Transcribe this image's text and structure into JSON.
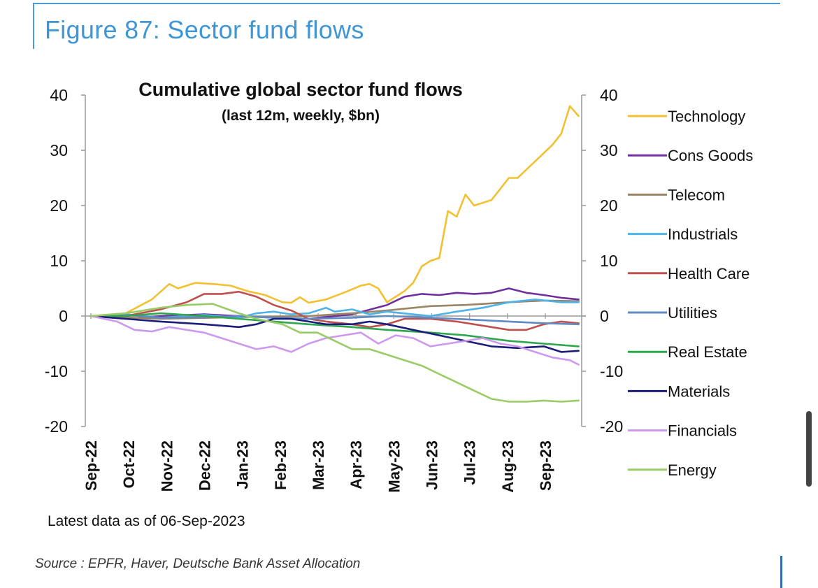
{
  "figure_title": "Figure 87: Sector fund flows",
  "footnote": "Latest data as of 06-Sep-2023",
  "source": "Source : EPFR, Haver, Deutsche Bank Asset Allocation",
  "chart_data": {
    "type": "line",
    "title": "Cumulative global sector fund flows",
    "subtitle": "(last 12m, weekly, $bn)",
    "xlabel": "",
    "ylabel": "",
    "ylim": [
      -20,
      40
    ],
    "yticks": [
      40,
      30,
      20,
      10,
      0,
      -10,
      -20
    ],
    "x_tick_labels": [
      "Sep-22",
      "Oct-22",
      "Nov-22",
      "Dec-22",
      "Jan-23",
      "Feb-23",
      "Mar-23",
      "Apr-23",
      "May-23",
      "Jun-23",
      "Jul-23",
      "Aug-23",
      "Sep-23"
    ],
    "x_start": "2022-09-07",
    "x_end": "2023-09-06",
    "grid": false,
    "dual_axis": true,
    "legend_position": "right",
    "series": [
      {
        "name": "Technology",
        "color": "#f2c031",
        "points": [
          [
            "2022-09-07",
            0
          ],
          [
            "2022-10-05",
            0.5
          ],
          [
            "2022-10-26",
            3
          ],
          [
            "2022-11-09",
            5.8
          ],
          [
            "2022-11-16",
            5
          ],
          [
            "2022-11-30",
            6
          ],
          [
            "2022-12-14",
            5.8
          ],
          [
            "2022-12-28",
            5.5
          ],
          [
            "2023-01-11",
            4.5
          ],
          [
            "2023-01-25",
            3.8
          ],
          [
            "2023-02-08",
            2.5
          ],
          [
            "2023-02-15",
            2.4
          ],
          [
            "2023-02-22",
            3.4
          ],
          [
            "2023-03-01",
            2.4
          ],
          [
            "2023-03-15",
            3
          ],
          [
            "2023-03-29",
            4.2
          ],
          [
            "2023-04-12",
            5.5
          ],
          [
            "2023-04-19",
            5.8
          ],
          [
            "2023-04-26",
            5
          ],
          [
            "2023-05-03",
            2.5
          ],
          [
            "2023-05-17",
            4.5
          ],
          [
            "2023-05-24",
            6
          ],
          [
            "2023-05-31",
            9
          ],
          [
            "2023-06-07",
            10
          ],
          [
            "2023-06-14",
            10.5
          ],
          [
            "2023-06-21",
            19
          ],
          [
            "2023-06-28",
            18
          ],
          [
            "2023-07-05",
            22
          ],
          [
            "2023-07-12",
            20
          ],
          [
            "2023-07-26",
            21
          ],
          [
            "2023-08-09",
            25
          ],
          [
            "2023-08-16",
            25
          ],
          [
            "2023-08-30",
            28
          ],
          [
            "2023-09-13",
            31
          ],
          [
            "2023-09-20",
            33
          ],
          [
            "2023-09-27",
            38
          ],
          [
            "2023-10-04",
            36.2
          ]
        ]
      },
      {
        "name": "Cons Goods",
        "color": "#7030a0",
        "points": [
          [
            "2022-09-07",
            0
          ],
          [
            "2022-10-05",
            -0.5
          ],
          [
            "2022-11-02",
            0
          ],
          [
            "2022-12-07",
            0.3
          ],
          [
            "2023-01-04",
            0
          ],
          [
            "2023-02-01",
            -0.3
          ],
          [
            "2023-03-01",
            -0.5
          ],
          [
            "2023-04-05",
            0.3
          ],
          [
            "2023-05-03",
            2
          ],
          [
            "2023-05-17",
            3.5
          ],
          [
            "2023-05-31",
            4
          ],
          [
            "2023-06-14",
            3.8
          ],
          [
            "2023-06-28",
            4.2
          ],
          [
            "2023-07-12",
            4
          ],
          [
            "2023-07-26",
            4.2
          ],
          [
            "2023-08-09",
            5
          ],
          [
            "2023-08-23",
            4.2
          ],
          [
            "2023-09-06",
            3.8
          ],
          [
            "2023-09-20",
            3.3
          ],
          [
            "2023-10-04",
            3
          ]
        ]
      },
      {
        "name": "Telecom",
        "color": "#998464",
        "points": [
          [
            "2022-09-07",
            0
          ],
          [
            "2022-11-02",
            -0.5
          ],
          [
            "2023-01-04",
            -0.2
          ],
          [
            "2023-03-01",
            0
          ],
          [
            "2023-04-05",
            0.5
          ],
          [
            "2023-05-03",
            1
          ],
          [
            "2023-06-07",
            1.8
          ],
          [
            "2023-07-05",
            2
          ],
          [
            "2023-08-09",
            2.5
          ],
          [
            "2023-09-06",
            2.8
          ],
          [
            "2023-10-04",
            2.7
          ]
        ]
      },
      {
        "name": "Industrials",
        "color": "#4db3e8",
        "points": [
          [
            "2022-09-07",
            0
          ],
          [
            "2022-10-05",
            0.3
          ],
          [
            "2022-11-02",
            -0.3
          ],
          [
            "2022-12-07",
            0.2
          ],
          [
            "2023-01-04",
            -0.3
          ],
          [
            "2023-01-18",
            0.5
          ],
          [
            "2023-02-01",
            0.8
          ],
          [
            "2023-02-15",
            0.3
          ],
          [
            "2023-03-01",
            0.5
          ],
          [
            "2023-03-15",
            1.5
          ],
          [
            "2023-03-22",
            0.8
          ],
          [
            "2023-04-05",
            1.2
          ],
          [
            "2023-04-19",
            0.3
          ],
          [
            "2023-05-03",
            0.8
          ],
          [
            "2023-05-24",
            0.3
          ],
          [
            "2023-06-07",
            0
          ],
          [
            "2023-06-28",
            0.8
          ],
          [
            "2023-07-19",
            1.5
          ],
          [
            "2023-08-09",
            2.5
          ],
          [
            "2023-08-30",
            3
          ],
          [
            "2023-09-20",
            2.5
          ],
          [
            "2023-10-04",
            2.5
          ]
        ]
      },
      {
        "name": "Health Care",
        "color": "#c0504d",
        "points": [
          [
            "2022-09-07",
            0
          ],
          [
            "2022-10-05",
            0
          ],
          [
            "2022-11-02",
            1.2
          ],
          [
            "2022-11-23",
            2.5
          ],
          [
            "2022-12-07",
            4
          ],
          [
            "2022-12-21",
            4
          ],
          [
            "2023-01-04",
            4.4
          ],
          [
            "2023-01-18",
            3.5
          ],
          [
            "2023-02-01",
            2
          ],
          [
            "2023-02-15",
            1
          ],
          [
            "2023-03-01",
            -0.5
          ],
          [
            "2023-03-15",
            -1
          ],
          [
            "2023-04-05",
            -1.5
          ],
          [
            "2023-04-19",
            -2
          ],
          [
            "2023-05-03",
            -1.5
          ],
          [
            "2023-05-17",
            -0.5
          ],
          [
            "2023-06-07",
            -0.5
          ],
          [
            "2023-06-28",
            -1
          ],
          [
            "2023-07-12",
            -1.5
          ],
          [
            "2023-07-26",
            -2
          ],
          [
            "2023-08-09",
            -2.5
          ],
          [
            "2023-08-23",
            -2.5
          ],
          [
            "2023-09-06",
            -1.5
          ],
          [
            "2023-09-20",
            -1
          ],
          [
            "2023-10-04",
            -1.3
          ]
        ]
      },
      {
        "name": "Utilities",
        "color": "#5f8ac4",
        "points": [
          [
            "2022-09-07",
            0
          ],
          [
            "2022-10-05",
            0.2
          ],
          [
            "2022-11-02",
            -0.3
          ],
          [
            "2022-12-07",
            -0.2
          ],
          [
            "2023-01-04",
            0
          ],
          [
            "2023-02-01",
            -0.3
          ],
          [
            "2023-03-01",
            -0.5
          ],
          [
            "2023-04-05",
            -0.3
          ],
          [
            "2023-05-03",
            0
          ],
          [
            "2023-06-07",
            -0.3
          ],
          [
            "2023-07-05",
            -0.6
          ],
          [
            "2023-08-09",
            -1
          ],
          [
            "2023-09-06",
            -1.3
          ],
          [
            "2023-10-04",
            -1.5
          ]
        ]
      },
      {
        "name": "Real Estate",
        "color": "#2ea84f",
        "points": [
          [
            "2022-09-07",
            0
          ],
          [
            "2022-10-05",
            0
          ],
          [
            "2022-11-02",
            0.5
          ],
          [
            "2022-12-07",
            0
          ],
          [
            "2023-01-04",
            -0.5
          ],
          [
            "2023-02-01",
            -1
          ],
          [
            "2023-03-01",
            -1.5
          ],
          [
            "2023-04-05",
            -2
          ],
          [
            "2023-05-03",
            -2.5
          ],
          [
            "2023-06-07",
            -3
          ],
          [
            "2023-07-05",
            -3.5
          ],
          [
            "2023-08-09",
            -4.5
          ],
          [
            "2023-09-06",
            -5
          ],
          [
            "2023-10-04",
            -5.5
          ]
        ]
      },
      {
        "name": "Materials",
        "color": "#1b1d7a",
        "points": [
          [
            "2022-09-07",
            0
          ],
          [
            "2022-10-05",
            -0.5
          ],
          [
            "2022-11-02",
            -1
          ],
          [
            "2022-12-07",
            -1.5
          ],
          [
            "2023-01-04",
            -2
          ],
          [
            "2023-01-18",
            -1.5
          ],
          [
            "2023-02-01",
            -0.5
          ],
          [
            "2023-02-15",
            -0.5
          ],
          [
            "2023-03-01",
            -1
          ],
          [
            "2023-03-15",
            -1.5
          ],
          [
            "2023-04-05",
            -1.5
          ],
          [
            "2023-04-19",
            -1
          ],
          [
            "2023-05-03",
            -1.5
          ],
          [
            "2023-05-24",
            -2.5
          ],
          [
            "2023-06-14",
            -3.5
          ],
          [
            "2023-07-05",
            -4.5
          ],
          [
            "2023-07-26",
            -5.5
          ],
          [
            "2023-08-16",
            -5.8
          ],
          [
            "2023-09-06",
            -5.5
          ],
          [
            "2023-09-20",
            -6.5
          ],
          [
            "2023-10-04",
            -6.3
          ]
        ]
      },
      {
        "name": "Financials",
        "color": "#cc99ee",
        "points": [
          [
            "2022-09-07",
            0
          ],
          [
            "2022-09-28",
            -1
          ],
          [
            "2022-10-12",
            -2.5
          ],
          [
            "2022-10-26",
            -2.8
          ],
          [
            "2022-11-09",
            -2
          ],
          [
            "2022-11-23",
            -2.5
          ],
          [
            "2022-12-07",
            -3
          ],
          [
            "2022-12-21",
            -4
          ],
          [
            "2023-01-04",
            -5
          ],
          [
            "2023-01-18",
            -6
          ],
          [
            "2023-02-01",
            -5.5
          ],
          [
            "2023-02-15",
            -6.5
          ],
          [
            "2023-03-01",
            -5
          ],
          [
            "2023-03-15",
            -4
          ],
          [
            "2023-03-29",
            -3.5
          ],
          [
            "2023-04-12",
            -3
          ],
          [
            "2023-04-26",
            -5
          ],
          [
            "2023-05-10",
            -3.5
          ],
          [
            "2023-05-24",
            -4
          ],
          [
            "2023-06-07",
            -5.5
          ],
          [
            "2023-06-21",
            -5
          ],
          [
            "2023-07-05",
            -4.5
          ],
          [
            "2023-07-19",
            -4
          ],
          [
            "2023-08-02",
            -5
          ],
          [
            "2023-08-16",
            -5.5
          ],
          [
            "2023-08-30",
            -6.5
          ],
          [
            "2023-09-13",
            -7.5
          ],
          [
            "2023-09-27",
            -8
          ],
          [
            "2023-10-04",
            -8.8
          ]
        ]
      },
      {
        "name": "Energy",
        "color": "#99cc66",
        "points": [
          [
            "2022-09-07",
            0
          ],
          [
            "2022-10-05",
            0.5
          ],
          [
            "2022-11-02",
            1.5
          ],
          [
            "2022-11-23",
            2
          ],
          [
            "2022-12-14",
            2.2
          ],
          [
            "2023-01-04",
            0.5
          ],
          [
            "2023-01-18",
            -0.5
          ],
          [
            "2023-02-08",
            -1.5
          ],
          [
            "2023-02-22",
            -3
          ],
          [
            "2023-03-08",
            -3
          ],
          [
            "2023-03-22",
            -4.5
          ],
          [
            "2023-04-05",
            -6
          ],
          [
            "2023-04-19",
            -6
          ],
          [
            "2023-05-03",
            -7
          ],
          [
            "2023-05-17",
            -8
          ],
          [
            "2023-05-31",
            -9
          ],
          [
            "2023-06-14",
            -10.5
          ],
          [
            "2023-06-28",
            -12
          ],
          [
            "2023-07-12",
            -13.5
          ],
          [
            "2023-07-26",
            -15
          ],
          [
            "2023-08-09",
            -15.5
          ],
          [
            "2023-08-23",
            -15.5
          ],
          [
            "2023-09-06",
            -15.3
          ],
          [
            "2023-09-20",
            -15.5
          ],
          [
            "2023-10-04",
            -15.3
          ]
        ]
      }
    ]
  }
}
